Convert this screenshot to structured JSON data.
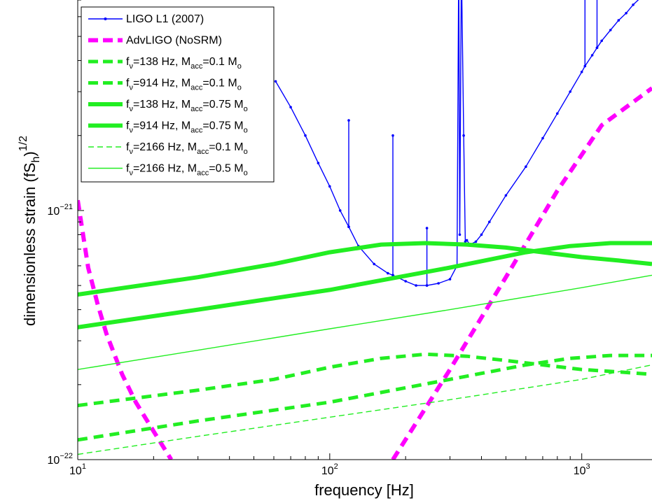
{
  "chart_data": {
    "type": "line",
    "x_scale": "log",
    "y_scale": "log",
    "xlim": [
      10,
      1900
    ],
    "ylim": [
      1e-22,
      7e-21
    ],
    "xlabel": "frequency [Hz]",
    "ylabel": "dimensionless strain (fS",
    "ylabel_sub": "h",
    "ylabel_tail": ")",
    "ylabel_sup": "1/2",
    "xticks": [
      {
        "value": 10,
        "base": "10",
        "exp": "1"
      },
      {
        "value": 100,
        "base": "10",
        "exp": "2"
      },
      {
        "value": 1000,
        "base": "10",
        "exp": "3"
      }
    ],
    "yticks": [
      {
        "value": 1e-22,
        "base": "10",
        "exp": "−22"
      },
      {
        "value": 1e-21,
        "base": "10",
        "exp": "−21"
      }
    ],
    "grid": false,
    "legend_position": "top-left",
    "series": [
      {
        "name": "LIGO L1 (2007)",
        "color": "#0000ff",
        "style": "line-dots",
        "width": 1.4,
        "x": [
          61,
          70,
          80,
          90,
          100,
          110,
          119,
          119,
          119,
          130,
          150,
          170,
          178,
          178,
          178,
          200,
          220,
          243,
          243,
          243,
          270,
          300,
          320,
          325,
          328,
          333,
          340,
          345,
          350,
          360,
          380,
          400,
          430,
          500,
          600,
          700,
          800,
          900,
          1000,
          1030,
          1030,
          1030,
          1100,
          1150,
          1150,
          1150,
          1200,
          1300,
          1400,
          1500,
          1600,
          1700,
          1800,
          1900
        ],
        "y": [
          3.3e-21,
          2.6e-21,
          2e-21,
          1.55e-21,
          1.25e-21,
          1e-21,
          8.6e-22,
          2.3e-21,
          8.6e-22,
          7.2e-22,
          6.1e-22,
          5.6e-22,
          5.5e-22,
          2e-21,
          5.5e-22,
          5.2e-22,
          5e-22,
          5e-22,
          8.5e-22,
          5e-22,
          5.1e-22,
          5.3e-22,
          6e-22,
          1e-20,
          8e-22,
          1e-20,
          2e-21,
          7.5e-22,
          7.6e-22,
          7.3e-22,
          7.5e-22,
          8e-22,
          9e-22,
          1.15e-21,
          1.5e-21,
          1.95e-21,
          2.45e-21,
          3e-21,
          3.6e-21,
          3.8e-21,
          1e-20,
          3.8e-21,
          4.2e-21,
          4.5e-21,
          1e-20,
          4.5e-21,
          4.8e-21,
          5.3e-21,
          5.8e-21,
          6.2e-21,
          6.7e-21,
          7.1e-21,
          7.5e-21,
          8e-21
        ]
      },
      {
        "name": "AdvLIGO (NoSRM)",
        "color": "#ff00ff",
        "style": "dashed",
        "width": 6,
        "segments": [
          {
            "x": [
              10,
              10.5,
              11,
              12,
              13,
              15,
              17,
              20,
              23.5
            ],
            "y": [
              1.1e-21,
              8e-22,
              5.9e-22,
              4.2e-22,
              3.2e-22,
              2.2e-22,
              1.7e-22,
              1.3e-22,
              1e-22
            ]
          },
          {
            "x": [
              178,
              300,
              500,
              800,
              1200,
              1900
            ],
            "y": [
              1e-22,
              2.3e-22,
              5.4e-22,
              1.2e-21,
              2.2e-21,
              3.1e-21
            ]
          }
        ]
      },
      {
        "name": "f_ν=138 Hz, M_acc=0.1 M_o",
        "color": "#22ee22",
        "style": "dashed",
        "width": 5,
        "x": [
          10,
          30,
          60,
          100,
          160,
          240,
          350,
          500,
          700,
          1000,
          1400,
          1900
        ],
        "y": [
          1.65e-22,
          1.9e-22,
          2.1e-22,
          2.35e-22,
          2.55e-22,
          2.65e-22,
          2.6e-22,
          2.5e-22,
          2.4e-22,
          2.3e-22,
          2.25e-22,
          2.2e-22
        ]
      },
      {
        "name": "f_ν=914 Hz, M_acc=0.1 M_o",
        "color": "#22ee22",
        "style": "dashed",
        "width": 5,
        "x": [
          10,
          30,
          100,
          300,
          600,
          900,
          1300,
          1900
        ],
        "y": [
          1.2e-22,
          1.43e-22,
          1.7e-22,
          2.1e-22,
          2.4e-22,
          2.55e-22,
          2.62e-22,
          2.62e-22
        ]
      },
      {
        "name": "f_ν=138 Hz, M_acc=0.75 M_o",
        "color": "#22ee22",
        "style": "solid",
        "width": 6,
        "x": [
          10,
          30,
          60,
          100,
          160,
          240,
          350,
          500,
          700,
          1000,
          1400,
          1900
        ],
        "y": [
          4.6e-22,
          5.4e-22,
          6.1e-22,
          6.8e-22,
          7.3e-22,
          7.4e-22,
          7.3e-22,
          7.1e-22,
          6.8e-22,
          6.5e-22,
          6.3e-22,
          6.1e-22
        ]
      },
      {
        "name": "f_ν=914 Hz, M_acc=0.75 M_o",
        "color": "#22ee22",
        "style": "solid",
        "width": 6,
        "x": [
          10,
          30,
          100,
          300,
          600,
          900,
          1300,
          1900
        ],
        "y": [
          3.4e-22,
          4e-22,
          4.8e-22,
          5.9e-22,
          6.8e-22,
          7.2e-22,
          7.4e-22,
          7.4e-22
        ]
      },
      {
        "name": "f_ν=2166 Hz, M_acc=0.1 M_o",
        "color": "#22ee22",
        "style": "dashed",
        "width": 1.4,
        "x": [
          10,
          30,
          100,
          300,
          1000,
          1900
        ],
        "y": [
          1.05e-22,
          1.24e-22,
          1.48e-22,
          1.74e-22,
          2.1e-22,
          2.4e-22
        ]
      },
      {
        "name": "f_ν=2166 Hz, M_acc=0.5 M_o",
        "color": "#22ee22",
        "style": "solid",
        "width": 1.4,
        "x": [
          10,
          30,
          100,
          300,
          1000,
          1900
        ],
        "y": [
          2.3e-22,
          2.75e-22,
          3.35e-22,
          4e-22,
          4.9e-22,
          5.5e-22
        ]
      }
    ],
    "legend": [
      {
        "main": "LIGO L1 (2007)"
      },
      {
        "main": "AdvLIGO (NoSRM)"
      },
      {
        "f": "f",
        "nu": "ν",
        "freq": "=138 Hz, M",
        "acc": "acc",
        "mass": "=0.1 M",
        "o": "o"
      },
      {
        "f": "f",
        "nu": "ν",
        "freq": "=914 Hz, M",
        "acc": "acc",
        "mass": "=0.1 M",
        "o": "o"
      },
      {
        "f": "f",
        "nu": "ν",
        "freq": "=138 Hz, M",
        "acc": "acc",
        "mass": "=0.75 M",
        "o": "o"
      },
      {
        "f": "f",
        "nu": "ν",
        "freq": "=914 Hz, M",
        "acc": "acc",
        "mass": "=0.75 M",
        "o": "o"
      },
      {
        "f": "f",
        "nu": "ν",
        "freq": "=2166 Hz, M",
        "acc": "acc",
        "mass": "=0.1 M",
        "o": "o"
      },
      {
        "f": "f",
        "nu": "ν",
        "freq": "=2166 Hz, M",
        "acc": "acc",
        "mass": "=0.5 M",
        "o": "o"
      }
    ]
  }
}
